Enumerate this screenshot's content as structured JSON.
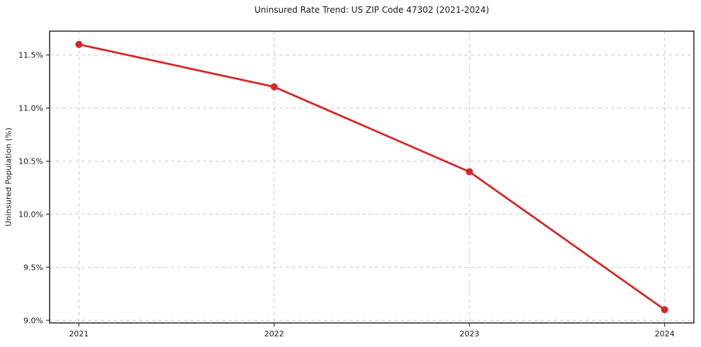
{
  "chart_data": {
    "type": "line",
    "title": "Uninsured Rate Trend: US ZIP Code 47302 (2021-2024)",
    "xlabel": "",
    "ylabel": "Uninsured Population (%)",
    "x": [
      2021,
      2022,
      2023,
      2024
    ],
    "values": [
      11.6,
      11.2,
      10.4,
      9.1
    ],
    "series_name": "uninsured-rate",
    "xlim": [
      2020.85,
      2024.15
    ],
    "ylim": [
      8.975,
      11.725
    ],
    "xticks": [
      2021,
      2022,
      2023,
      2024
    ],
    "xtick_labels": [
      "2021",
      "2022",
      "2023",
      "2024"
    ],
    "yticks": [
      9.0,
      9.5,
      10.0,
      10.5,
      11.0,
      11.5
    ],
    "ytick_labels": [
      "9.0%",
      "9.5%",
      "10.0%",
      "10.5%",
      "11.0%",
      "11.5%"
    ],
    "grid": true,
    "grid_style": "dashed",
    "legend": false,
    "colors": {
      "line": "#d62728",
      "marker": "#d62728",
      "grid": "#cccccc",
      "spine": "#333333",
      "text": "#1a1a1a",
      "background": "#ffffff"
    }
  }
}
